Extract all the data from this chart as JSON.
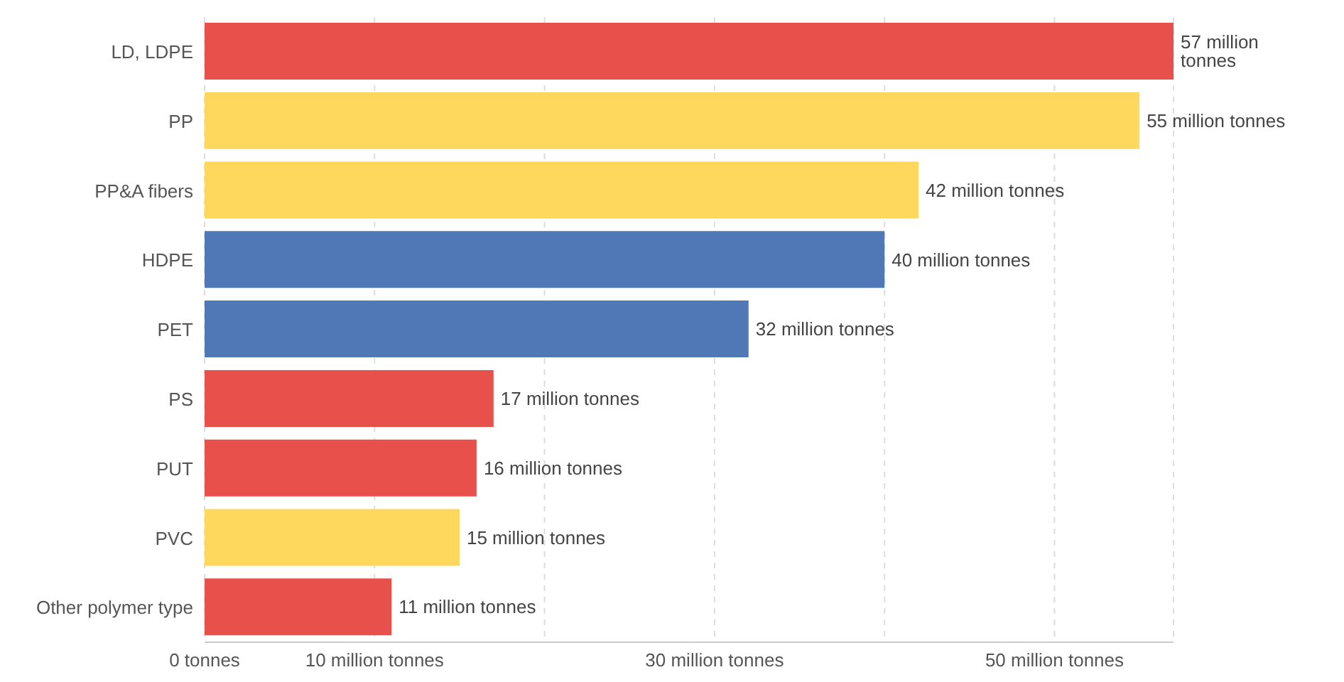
{
  "chart_data": {
    "type": "bar",
    "orientation": "horizontal",
    "categories": [
      "LD, LDPE",
      "PP",
      "PP&A fibers",
      "HDPE",
      "PET",
      "PS",
      "PUT",
      "PVC",
      "Other polymer type"
    ],
    "values": [
      57,
      55,
      42,
      40,
      32,
      17,
      16,
      15,
      11
    ],
    "colors": [
      "#e8504c",
      "#fdd85d",
      "#fdd85d",
      "#5078b7",
      "#5078b7",
      "#e8504c",
      "#e8504c",
      "#fdd85d",
      "#e8504c"
    ],
    "value_labels": [
      "57 million tonnes",
      "55 million tonnes",
      "42 million tonnes",
      "40 million tonnes",
      "32 million tonnes",
      "17 million tonnes",
      "16 million tonnes",
      "15 million tonnes",
      "11 million tonnes"
    ],
    "xlim": [
      0,
      57
    ],
    "xticks": [
      {
        "value": 0,
        "label": "0 tonnes"
      },
      {
        "value": 10,
        "label": "10 million tonnes"
      },
      {
        "value": 20,
        "label": null
      },
      {
        "value": 30,
        "label": "30 million tonnes"
      },
      {
        "value": 40,
        "label": null
      },
      {
        "value": 50,
        "label": "50 million tonnes"
      }
    ],
    "grid": "x"
  }
}
